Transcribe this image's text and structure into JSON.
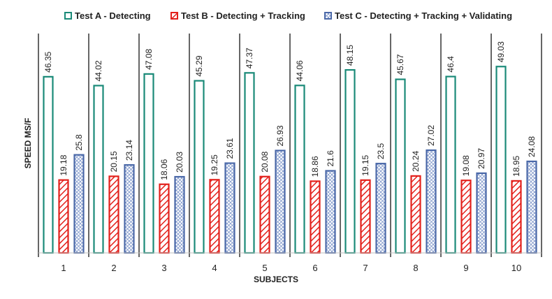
{
  "chart_data": {
    "type": "bar",
    "title": "",
    "xlabel": "SUBJECTS",
    "ylabel": "SPEED MS/F",
    "ylim": [
      0,
      52
    ],
    "categories": [
      "1",
      "2",
      "3",
      "4",
      "5",
      "6",
      "7",
      "8",
      "9",
      "10"
    ],
    "series": [
      {
        "name": "Test A - Detecting",
        "color": "#1a8a78",
        "pattern": "hollow",
        "values": [
          46.35,
          44.02,
          47.08,
          45.29,
          47.37,
          44.06,
          48.15,
          45.67,
          46.4,
          49.03
        ],
        "labels": [
          "46.35",
          "44.02",
          "47.08",
          "45.29",
          "47.37",
          "44.06",
          "48.15",
          "45.67",
          "46.4",
          "49.03"
        ]
      },
      {
        "name": "Test B - Detecting + Tracking",
        "color": "#e3211c",
        "pattern": "diagonal",
        "values": [
          19.18,
          20.15,
          18.06,
          19.25,
          20.08,
          18.86,
          19.15,
          20.24,
          19.08,
          18.95
        ],
        "labels": [
          "19.18",
          "20.15",
          "18.06",
          "19.25",
          "20.08",
          "18.86",
          "19.15",
          "20.24",
          "19.08",
          "18.95"
        ]
      },
      {
        "name": "Test C - Detecting + Tracking + Validating",
        "color": "#4a68a8",
        "pattern": "crosshatch",
        "values": [
          25.8,
          23.14,
          20.03,
          23.61,
          26.93,
          21.6,
          23.5,
          27.02,
          20.97,
          24.08
        ],
        "labels": [
          "25.8",
          "23.14",
          "20.03",
          "23.61",
          "26.93",
          "21.6",
          "23.5",
          "27.02",
          "20.97",
          "24.08"
        ]
      }
    ],
    "legend_position": "top",
    "grid": false
  }
}
